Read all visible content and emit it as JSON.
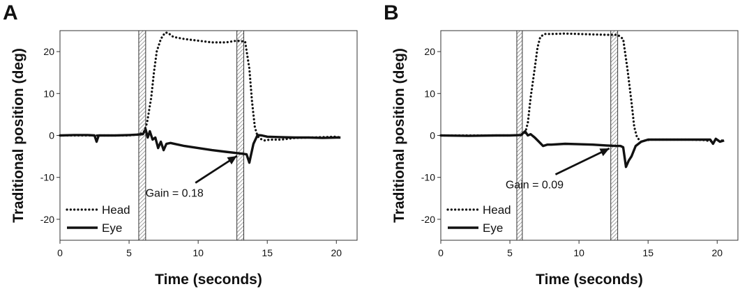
{
  "chart_data": [
    {
      "type": "line",
      "panel_label": "A",
      "xlabel": "Time (seconds)",
      "ylabel": "Traditional position (deg)",
      "xlim": [
        0,
        21.5
      ],
      "ylim": [
        -25,
        25
      ],
      "xticks": [
        0,
        5,
        10,
        15,
        20
      ],
      "yticks": [
        -20,
        -10,
        0,
        10,
        20
      ],
      "grid": false,
      "legend_position": "bottom-left",
      "shaded_intervals": [
        [
          5.7,
          6.2
        ],
        [
          12.8,
          13.3
        ]
      ],
      "annotation": {
        "text": "Gain = 0.18",
        "arrow_from": [
          9.8,
          -11.3
        ],
        "arrow_to": [
          12.8,
          -4.9
        ]
      },
      "series": [
        {
          "name": "Head",
          "style": "dotted",
          "color": "#111111",
          "x": [
            0,
            2,
            4,
            5,
            5.8,
            6.1,
            6.3,
            6.6,
            6.8,
            7.0,
            7.3,
            7.6,
            7.8,
            8.2,
            9,
            10,
            11,
            12,
            12.8,
            13.4,
            13.7,
            13.9,
            14.1,
            14.3,
            14.5,
            14.8,
            15.2,
            16,
            17,
            18,
            19,
            20,
            20.3
          ],
          "y": [
            0,
            0,
            0,
            0,
            0.3,
            1,
            3,
            9,
            15,
            20,
            23,
            24.5,
            24.5,
            23.5,
            23,
            22.6,
            22.2,
            22.2,
            22.6,
            22.4,
            16,
            8,
            2,
            -0.2,
            -0.8,
            -1.2,
            -1,
            -1,
            -0.6,
            -0.5,
            -0.4,
            -0.3,
            -0.5
          ]
        },
        {
          "name": "Eye",
          "style": "solid",
          "color": "#111111",
          "x": [
            0,
            1,
            2,
            2.5,
            2.65,
            2.8,
            3.2,
            4,
            5,
            5.6,
            6.0,
            6.2,
            6.35,
            6.5,
            6.7,
            6.9,
            7.1,
            7.3,
            7.5,
            7.7,
            8,
            9,
            10,
            11,
            12,
            12.8,
            13.3,
            13.5,
            13.7,
            13.8,
            14.0,
            14.3,
            14.6,
            15,
            16,
            17,
            18,
            19,
            20,
            20.3
          ],
          "y": [
            0,
            0.1,
            0.1,
            0,
            -1.5,
            0,
            0,
            0,
            0.1,
            0.2,
            0.3,
            1.5,
            -0.5,
            1,
            -1,
            -0.5,
            -3,
            -1.5,
            -3.5,
            -2,
            -1.8,
            -2.5,
            -3,
            -3.5,
            -3.9,
            -4.2,
            -4.4,
            -4.5,
            -6.5,
            -5,
            -2,
            0.1,
            0,
            -0.3,
            -0.4,
            -0.5,
            -0.5,
            -0.6,
            -0.5,
            -0.5
          ]
        }
      ]
    },
    {
      "type": "line",
      "panel_label": "B",
      "xlabel": "Time (seconds)",
      "ylabel": "Traditional position (deg)",
      "xlim": [
        0,
        21.5
      ],
      "ylim": [
        -25,
        25
      ],
      "xticks": [
        0,
        5,
        10,
        15,
        20
      ],
      "yticks": [
        -20,
        -10,
        0,
        10,
        20
      ],
      "grid": false,
      "legend_position": "bottom-left",
      "shaded_intervals": [
        [
          5.5,
          5.9
        ],
        [
          12.3,
          12.8
        ]
      ],
      "annotation": {
        "text": "Gain = 0.09",
        "arrow_from": [
          8.3,
          -9.3
        ],
        "arrow_to": [
          12.2,
          -3.1
        ]
      },
      "series": [
        {
          "name": "Head",
          "style": "dotted",
          "color": "#111111",
          "x": [
            0,
            2,
            4,
            5,
            5.8,
            6.1,
            6.3,
            6.5,
            6.8,
            7.0,
            7.2,
            7.5,
            8,
            9,
            10,
            11,
            12,
            12.8,
            13.2,
            13.5,
            13.8,
            14.0,
            14.2,
            14.5,
            14.8,
            15.2,
            16,
            17,
            18,
            19,
            19.6,
            20,
            20.5
          ],
          "y": [
            0,
            0,
            0,
            0,
            0.1,
            0.5,
            3,
            9,
            16,
            21,
            23.5,
            24.2,
            24.2,
            24.3,
            24.2,
            24.1,
            24,
            24,
            23,
            16,
            8,
            2,
            -0.5,
            -1.5,
            -1.2,
            -1,
            -1,
            -1,
            -1,
            -1.1,
            -1.4,
            -1.2,
            -1.2
          ]
        },
        {
          "name": "Eye",
          "style": "solid",
          "color": "#111111",
          "x": [
            0,
            2,
            4,
            5,
            5.8,
            6.1,
            6.3,
            6.5,
            6.8,
            7.1,
            7.4,
            7.7,
            8,
            9,
            10,
            11,
            12,
            12.7,
            13.0,
            13.2,
            13.4,
            13.6,
            13.8,
            14.1,
            14.5,
            15,
            16,
            17,
            18,
            19,
            19.5,
            19.7,
            19.9,
            20.2,
            20.5
          ],
          "y": [
            0,
            -0.1,
            0,
            0,
            0.1,
            1,
            0,
            0.3,
            -0.5,
            -1.5,
            -2.5,
            -2.2,
            -2.2,
            -2,
            -2.1,
            -2.2,
            -2.4,
            -2.5,
            -2.5,
            -2.8,
            -7.5,
            -6,
            -5,
            -2.5,
            -1.5,
            -1,
            -1,
            -1,
            -1,
            -1,
            -1,
            -2,
            -0.8,
            -1.5,
            -1.2
          ]
        }
      ]
    }
  ]
}
